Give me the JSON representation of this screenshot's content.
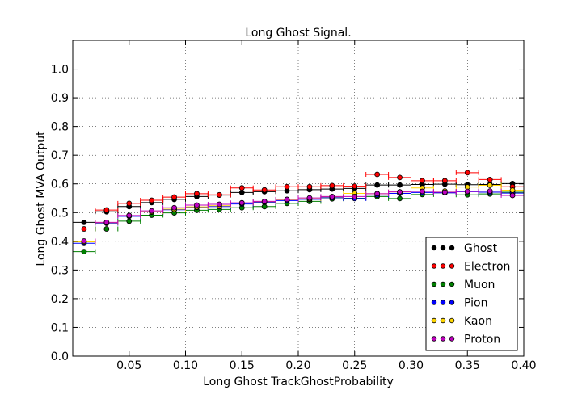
{
  "chart_data": {
    "type": "scatter",
    "title": "Long Ghost Signal.",
    "xlabel": "Long Ghost TrackGhostProbability",
    "ylabel": "Long Ghost MVA Output",
    "xlim": [
      0.0,
      0.4
    ],
    "ylim": [
      0.0,
      1.1
    ],
    "x_ticks": [
      0.05,
      0.1,
      0.15,
      0.2,
      0.25,
      0.3,
      0.35,
      0.4
    ],
    "x_tick_labels": [
      "0.05",
      "0.10",
      "0.15",
      "0.20",
      "0.25",
      "0.30",
      "0.35",
      "0.40"
    ],
    "y_ticks": [
      0.0,
      0.1,
      0.2,
      0.3,
      0.4,
      0.5,
      0.6,
      0.7,
      0.8,
      0.9,
      1.0
    ],
    "y_tick_labels": [
      "0.0",
      "0.1",
      "0.2",
      "0.3",
      "0.4",
      "0.5",
      "0.6",
      "0.7",
      "0.8",
      "0.9",
      "1.0"
    ],
    "grid": true,
    "reference_line": 1.0,
    "bin_width": 0.02,
    "legend_position": "bottom-right",
    "x": [
      0.01,
      0.03,
      0.05,
      0.07,
      0.09,
      0.11,
      0.13,
      0.15,
      0.17,
      0.19,
      0.21,
      0.23,
      0.25,
      0.27,
      0.29,
      0.31,
      0.33,
      0.35,
      0.37,
      0.39
    ],
    "series": [
      {
        "name": "Ghost",
        "color": "#000000",
        "values": [
          0.466,
          0.503,
          0.521,
          0.535,
          0.546,
          0.556,
          0.561,
          0.57,
          0.573,
          0.576,
          0.58,
          0.582,
          0.584,
          0.596,
          0.596,
          0.598,
          0.599,
          0.597,
          0.598,
          0.601
        ]
      },
      {
        "name": "Electron",
        "color": "#ff0000",
        "values": [
          0.443,
          0.509,
          0.532,
          0.543,
          0.554,
          0.566,
          0.562,
          0.586,
          0.579,
          0.59,
          0.59,
          0.594,
          0.592,
          0.633,
          0.622,
          0.611,
          0.611,
          0.639,
          0.615,
          0.59
        ]
      },
      {
        "name": "Muon",
        "color": "#008000",
        "values": [
          0.364,
          0.443,
          0.47,
          0.491,
          0.499,
          0.508,
          0.511,
          0.517,
          0.521,
          0.532,
          0.539,
          0.548,
          0.55,
          0.556,
          0.549,
          0.563,
          0.569,
          0.562,
          0.565,
          0.571
        ]
      },
      {
        "name": "Pion",
        "color": "#0000ff",
        "values": [
          0.393,
          0.463,
          0.487,
          0.502,
          0.51,
          0.518,
          0.521,
          0.53,
          0.536,
          0.542,
          0.546,
          0.552,
          0.549,
          0.561,
          0.567,
          0.57,
          0.569,
          0.573,
          0.571,
          0.568
        ]
      },
      {
        "name": "Kaon",
        "color": "#ffd700",
        "values": [
          0.398,
          0.465,
          0.489,
          0.503,
          0.512,
          0.52,
          0.524,
          0.533,
          0.538,
          0.545,
          0.548,
          0.555,
          0.567,
          0.566,
          0.572,
          0.586,
          0.575,
          0.589,
          0.595,
          0.578
        ]
      },
      {
        "name": "Proton",
        "color": "#bf00bf",
        "values": [
          0.401,
          0.466,
          0.49,
          0.506,
          0.517,
          0.526,
          0.529,
          0.534,
          0.539,
          0.546,
          0.551,
          0.556,
          0.556,
          0.566,
          0.572,
          0.574,
          0.571,
          0.574,
          0.575,
          0.56
        ]
      }
    ]
  }
}
